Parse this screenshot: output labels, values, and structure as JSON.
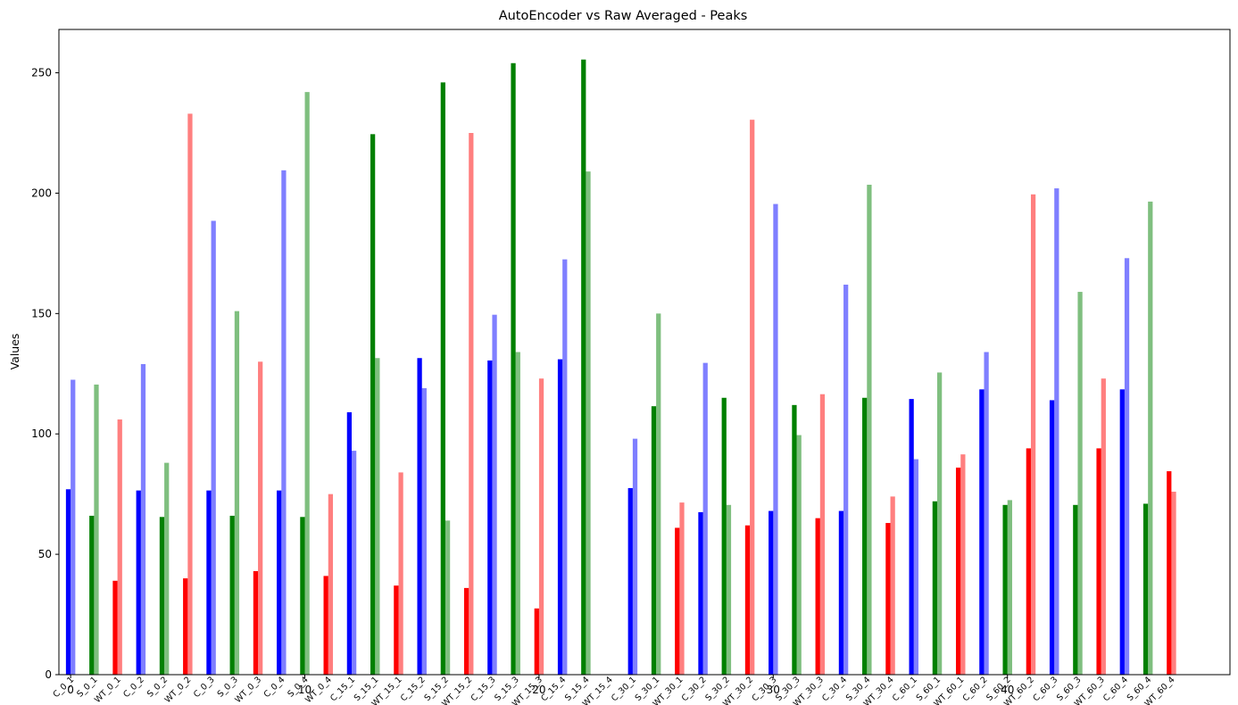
{
  "chart_data": {
    "type": "bar",
    "title": "AutoEncoder vs Raw Averaged - Peaks",
    "xlabel": "",
    "ylabel": "Values",
    "ylim": [
      0,
      268
    ],
    "xlim": [
      -0.5,
      49.5
    ],
    "yticks": [
      0,
      50,
      100,
      150,
      200,
      250
    ],
    "xticks": [
      0,
      10,
      20,
      30,
      40
    ],
    "grid": false,
    "categories": [
      "C_0_1",
      "S_0_1",
      "WT_0_1",
      "C_0_2",
      "S_0_2",
      "WT_0_2",
      "C_0_3",
      "S_0_3",
      "WT_0_3",
      "C_0_4",
      "S_0_4",
      "WT_0_4",
      "C_15_1",
      "S_15_1",
      "WT_15_1",
      "C_15_2",
      "S_15_2",
      "WT_15_2",
      "C_15_3",
      "S_15_3",
      "WT_15_3",
      "C_15_4",
      "S_15_4",
      "WT_15_4",
      "C_30_1",
      "S_30_1",
      "WT_30_1",
      "C_30_2",
      "S_30_2",
      "WT_30_2",
      "C_30_3",
      "S_30_3",
      "WT_30_3",
      "C_30_4",
      "S_30_4",
      "WT_30_4",
      "C_60_1",
      "S_60_1",
      "WT_60_1",
      "C_60_2",
      "S_60_2",
      "WT_60_2",
      "C_60_3",
      "S_60_3",
      "WT_60_3",
      "C_60_4",
      "S_60_4",
      "WT_60_4"
    ],
    "colors": {
      "C": "#0000ff",
      "S": "#008000",
      "WT": "#ff0000"
    },
    "series": [
      {
        "values": [
          77,
          66,
          39,
          76.5,
          65.5,
          40,
          76.5,
          66,
          43,
          76.5,
          65.5,
          41,
          109,
          224.5,
          37,
          131.5,
          246,
          36,
          130.5,
          254,
          27.5,
          131,
          255.5,
          null,
          77.5,
          111.5,
          61,
          67.5,
          115,
          62,
          68,
          112,
          65,
          68,
          115,
          63,
          114.5,
          72,
          86,
          118.5,
          70.5,
          94,
          114,
          70.5,
          94,
          118.5,
          71,
          84.5
        ]
      },
      {
        "values": [
          122.5,
          120.5,
          106,
          129,
          88,
          233,
          188.5,
          151,
          130,
          209.5,
          242,
          75,
          93,
          131.5,
          84,
          119,
          64,
          225,
          149.5,
          134,
          123,
          172.5,
          209,
          null,
          98,
          150,
          71.5,
          129.5,
          70.5,
          230.5,
          195.5,
          99.5,
          116.5,
          162,
          203.5,
          74,
          89.5,
          125.5,
          91.5,
          134,
          72.5,
          199.5,
          202,
          159,
          123,
          173,
          196.5,
          76
        ]
      }
    ]
  }
}
